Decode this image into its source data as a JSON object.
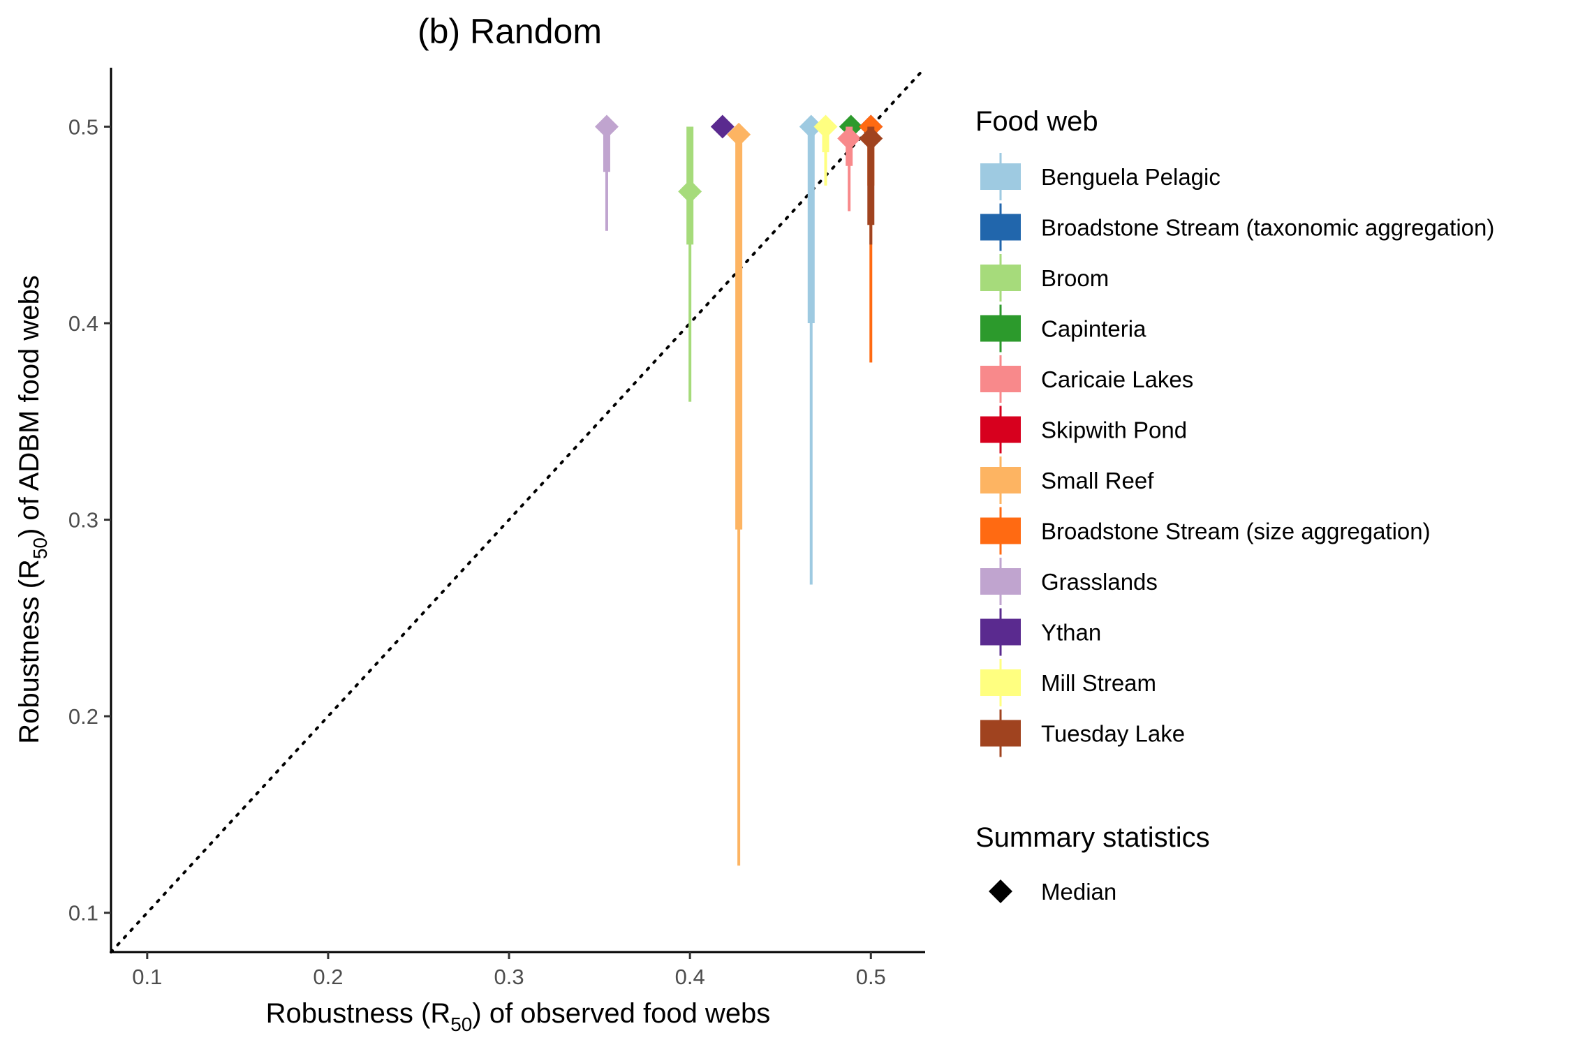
{
  "chart_data": {
    "type": "scatter",
    "title": "(b) Random",
    "xlabel": {
      "prefix": "Robustness (R",
      "sub": "50",
      "suffix": ") of observed food webs"
    },
    "ylabel": {
      "prefix": "Robustness (R",
      "sub": "50",
      "suffix": ") of ADBM food webs"
    },
    "xlim": [
      0.08,
      0.53
    ],
    "ylim": [
      0.08,
      0.53
    ],
    "xticks": [
      0.1,
      0.2,
      0.3,
      0.4,
      0.5
    ],
    "yticks": [
      0.1,
      0.2,
      0.3,
      0.4,
      0.5
    ],
    "xtick_labels": [
      "0.1",
      "0.2",
      "0.3",
      "0.4",
      "0.5"
    ],
    "ytick_labels": [
      "0.1",
      "0.2",
      "0.3",
      "0.4",
      "0.5"
    ],
    "reference_line": "y = x (dotted)",
    "grid": false,
    "legend_position": "right",
    "legend_title": "Food web",
    "summary_legend_title": "Summary statistics",
    "summary_legend_item": "Median",
    "series": [
      {
        "name": "Benguela Pelagic",
        "color": "#9ECAE1",
        "x": 0.467,
        "median": 0.5,
        "inner": [
          0.4,
          0.5
        ],
        "outer": [
          0.267,
          0.5
        ]
      },
      {
        "name": "Broadstone Stream (taxonomic aggregation)",
        "color": "#2166AC",
        "x": 0.5,
        "median": 0.5,
        "inner": [
          0.5,
          0.5
        ],
        "outer": [
          0.5,
          0.5
        ]
      },
      {
        "name": "Broom",
        "color": "#A6DB7B",
        "x": 0.4,
        "median": 0.467,
        "inner": [
          0.44,
          0.5
        ],
        "outer": [
          0.36,
          0.5
        ]
      },
      {
        "name": "Capinteria",
        "color": "#2C9A2C",
        "x": 0.489,
        "median": 0.5,
        "inner": [
          0.5,
          0.5
        ],
        "outer": [
          0.5,
          0.5
        ]
      },
      {
        "name": "Caricaie Lakes",
        "color": "#F8898B",
        "x": 0.488,
        "median": 0.494,
        "inner": [
          0.48,
          0.5
        ],
        "outer": [
          0.457,
          0.5
        ]
      },
      {
        "name": "Skipwith Pond",
        "color": "#D7001E",
        "x": 0.5,
        "median": 0.5,
        "inner": [
          0.5,
          0.5
        ],
        "outer": [
          0.5,
          0.5
        ]
      },
      {
        "name": "Small Reef",
        "color": "#FDB462",
        "x": 0.427,
        "median": 0.496,
        "inner": [
          0.295,
          0.5
        ],
        "outer": [
          0.124,
          0.5
        ]
      },
      {
        "name": "Broadstone Stream (size aggregation)",
        "color": "#FF6A12",
        "x": 0.5,
        "median": 0.5,
        "inner": [
          0.47,
          0.5
        ],
        "outer": [
          0.38,
          0.5
        ]
      },
      {
        "name": "Grasslands",
        "color": "#C0A4CF",
        "x": 0.354,
        "median": 0.5,
        "inner": [
          0.477,
          0.5
        ],
        "outer": [
          0.447,
          0.5
        ]
      },
      {
        "name": "Ythan",
        "color": "#5A2A8F",
        "x": 0.418,
        "median": 0.5,
        "inner": [
          0.5,
          0.5
        ],
        "outer": [
          0.5,
          0.5
        ]
      },
      {
        "name": "Mill Stream",
        "color": "#FFFF80",
        "x": 0.475,
        "median": 0.5,
        "inner": [
          0.487,
          0.5
        ],
        "outer": [
          0.47,
          0.5
        ]
      },
      {
        "name": "Tuesday Lake",
        "color": "#A0431F",
        "x": 0.5,
        "median": 0.494,
        "inner": [
          0.45,
          0.5
        ],
        "outer": [
          0.44,
          0.5
        ]
      }
    ]
  }
}
